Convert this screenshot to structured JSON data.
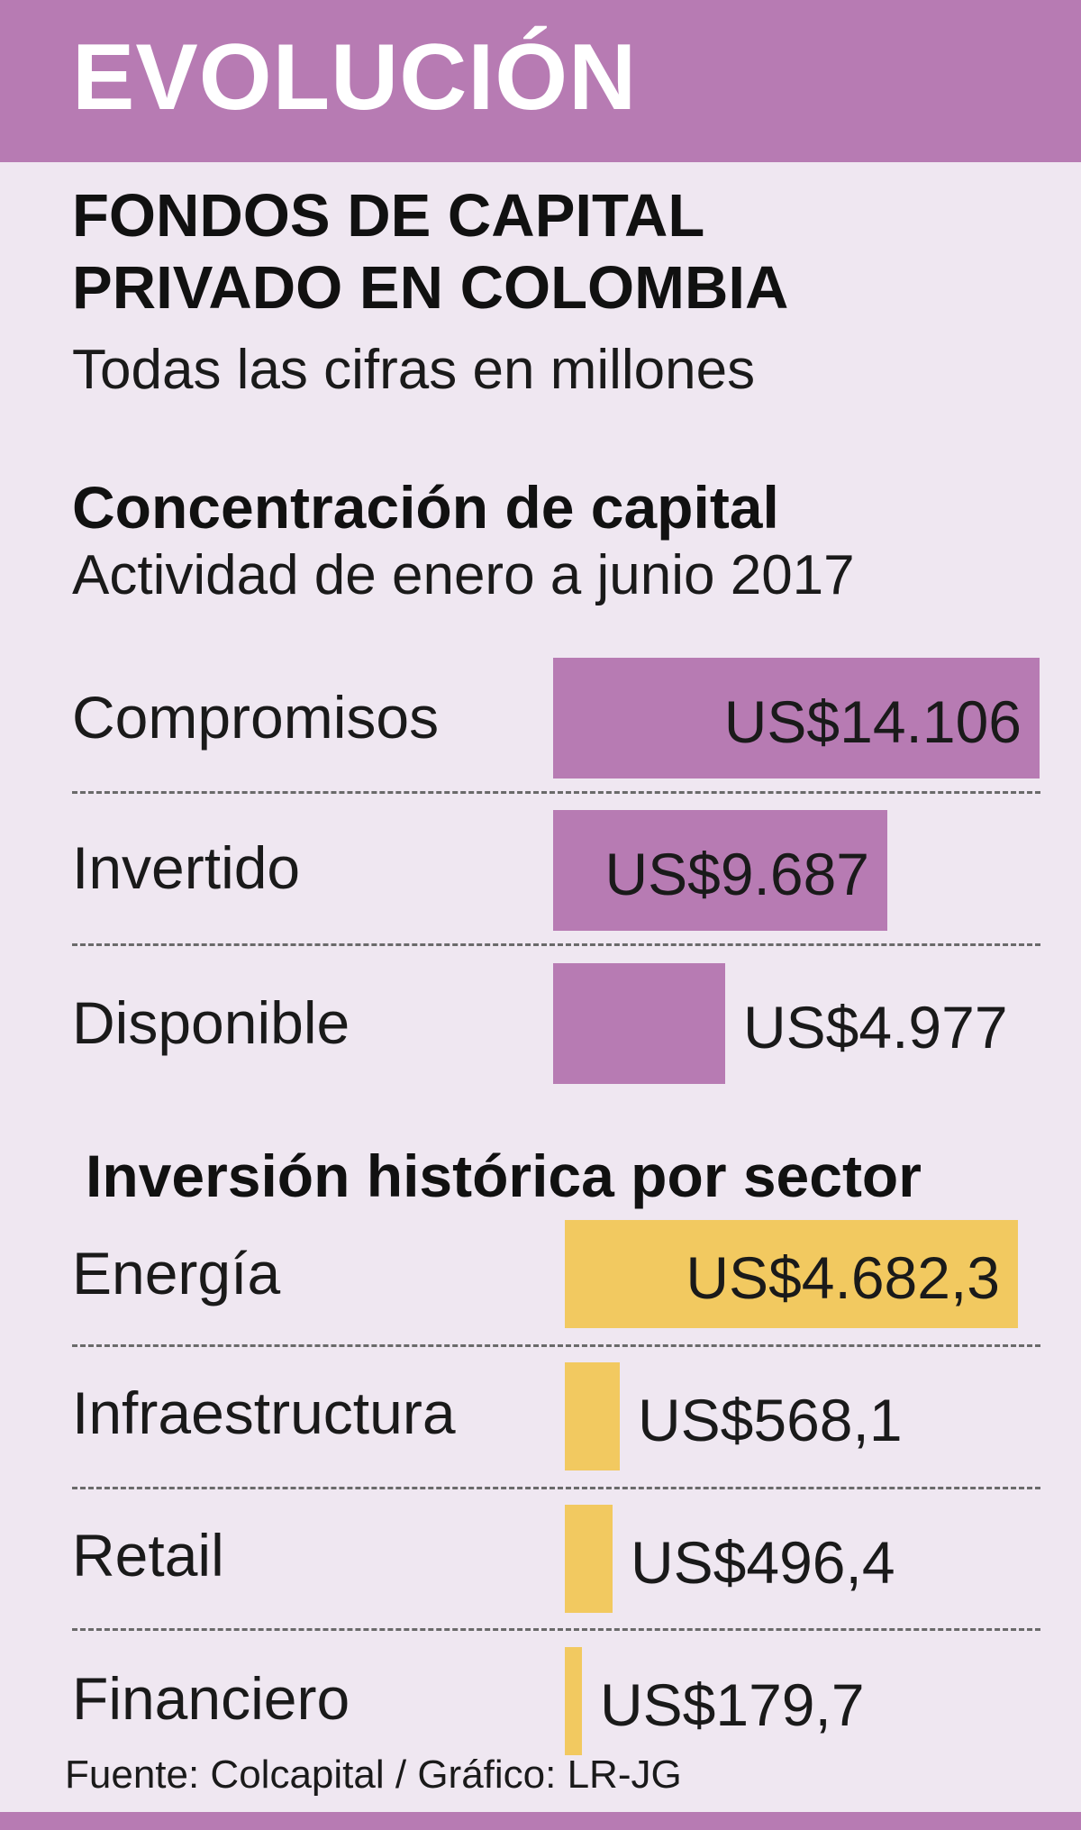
{
  "header": {
    "banner": "EVOLUCIÓN"
  },
  "title_line1": "FONDOS DE CAPITAL",
  "title_line2": "PRIVADO EN COLOMBIA",
  "subtitle": "Todas las cifras en millones",
  "colors": {
    "purple": "#b77bb3",
    "yellow": "#f2c960",
    "background": "#efe7f1"
  },
  "chart_data": [
    {
      "type": "bar",
      "orientation": "horizontal",
      "title": "Concentración de capital",
      "subtitle": "Actividad de enero a junio 2017",
      "categories": [
        "Compromisos",
        "Invertido",
        "Disponible"
      ],
      "values": [
        14106,
        9687,
        4977
      ],
      "value_labels": [
        "US$14.106",
        "US$9.687",
        "US$4.977"
      ],
      "color": "#b77bb3"
    },
    {
      "type": "bar",
      "orientation": "horizontal",
      "title": "Inversión histórica por sector",
      "categories": [
        "Energía",
        "Infraestructura",
        "Retail",
        "Financiero"
      ],
      "values": [
        4682.3,
        568.1,
        496.4,
        179.7
      ],
      "value_labels": [
        "US$4.682,3",
        "US$568,1",
        "US$496,4",
        "US$179,7"
      ],
      "color": "#f2c960"
    }
  ],
  "source": "Fuente: Colcapital / Gráfico: LR-JG"
}
